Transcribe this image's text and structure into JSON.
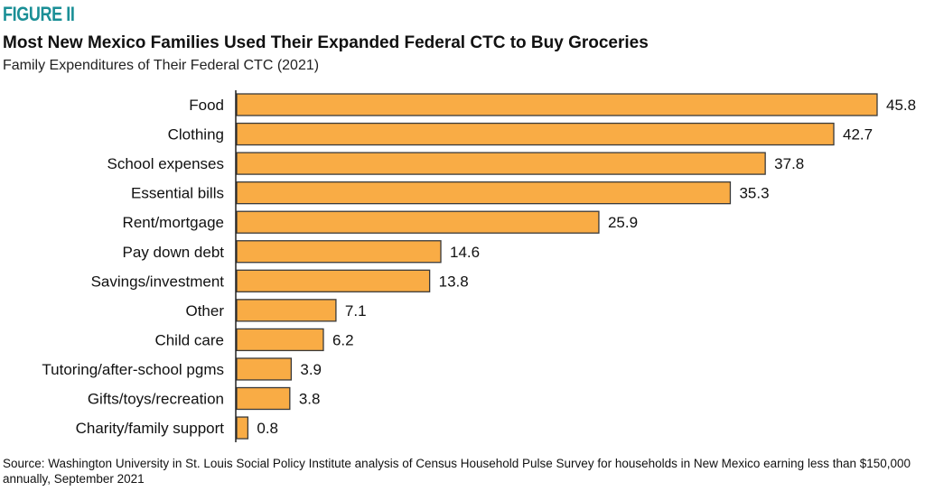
{
  "figure_label": "FIGURE II",
  "source_note": "Source: Washington University in St. Louis Social Policy Institute analysis of Census Household Pulse Survey for households in New Mexico earning less than $150,000 annually, September 2021",
  "colors": {
    "bar_fill": "#F9AC45",
    "bar_stroke": "#3a3a3a",
    "axis": "#222222",
    "figure_label": "#1a8f96"
  },
  "chart_data": {
    "type": "bar",
    "orientation": "horizontal",
    "title": "Most New Mexico Families Used Their Expanded Federal CTC to Buy Groceries",
    "subtitle": "Family Expenditures of Their Federal CTC (2021)",
    "xlabel": "",
    "ylabel": "",
    "xlim": [
      0,
      45.8
    ],
    "grid": false,
    "legend": "none",
    "categories": [
      "Food",
      "Clothing",
      "School expenses",
      "Essential bills",
      "Rent/mortgage",
      "Pay down debt",
      "Savings/investment",
      "Other",
      "Child care",
      "Tutoring/after-school pgms",
      "Gifts/toys/recreation",
      "Charity/family support"
    ],
    "values": [
      45.8,
      42.7,
      37.8,
      35.3,
      25.9,
      14.6,
      13.8,
      7.1,
      6.2,
      3.9,
      3.8,
      0.8
    ],
    "value_labels": [
      "45.8",
      "42.7",
      "37.8",
      "35.3",
      "25.9",
      "14.6",
      "13.8",
      "7.1",
      "6.2",
      "3.9",
      "3.8",
      "0.8"
    ]
  }
}
